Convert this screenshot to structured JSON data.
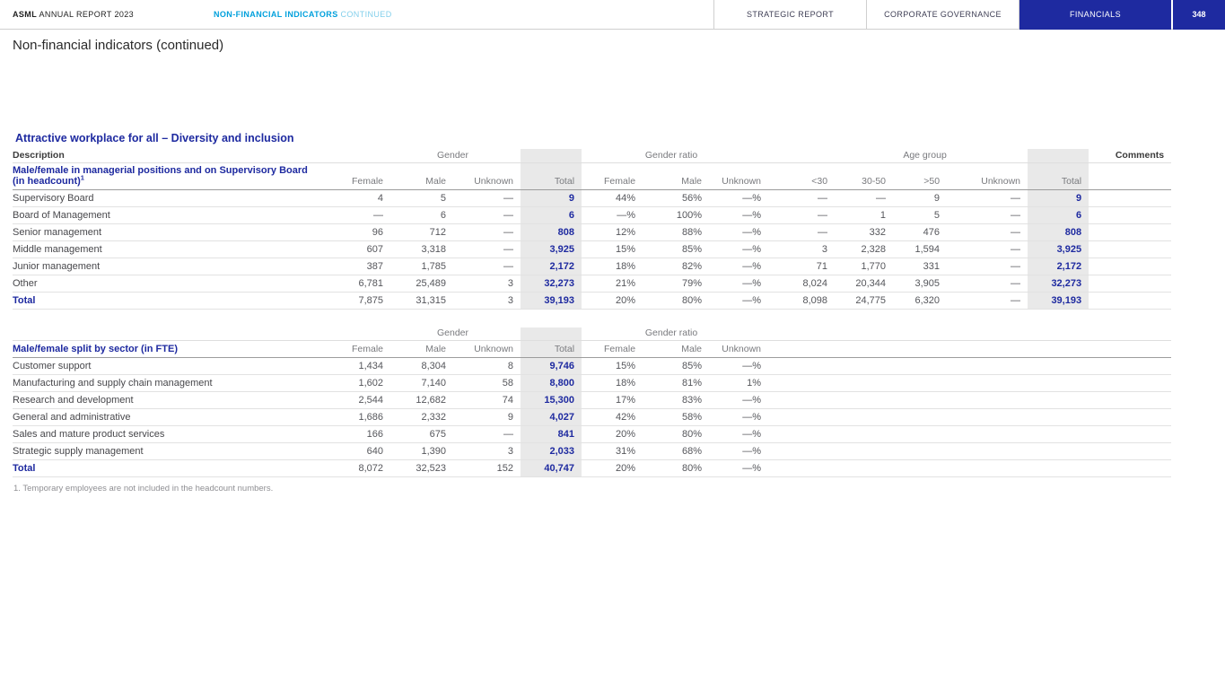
{
  "colors": {
    "navy": "#1e2aa0",
    "cyan": "#00a0dc",
    "cyan_light": "#82cfeb",
    "gray_band": "#e9e9e9"
  },
  "header": {
    "brand_bold": "ASML",
    "brand_rest": " ANNUAL REPORT 2023",
    "section_bold": "NON-FINANCIAL INDICATORS",
    "section_rest": " CONTINUED",
    "tabs": [
      {
        "label": "STRATEGIC REPORT"
      },
      {
        "label": "CORPORATE GOVERNANCE"
      },
      {
        "label": "FINANCIALS"
      }
    ],
    "page_number": "348"
  },
  "page": {
    "title": "Non-financial indicators (continued)",
    "section_heading": "Attractive workplace for all – Diversity and inclusion",
    "footnote": "1. Temporary employees are not included in the headcount numbers."
  },
  "table1": {
    "group_headers": {
      "description": "Description",
      "gender": "Gender",
      "gender_ratio": "Gender ratio",
      "age_group": "Age group",
      "comments": "Comments"
    },
    "subtitle": "Male/female in managerial positions and on Supervisory Board (in headcount)",
    "subtitle_footnote_ref": "1",
    "columns": [
      "Female",
      "Male",
      "Unknown",
      "Total",
      "Female",
      "Male",
      "Unknown",
      "<30",
      "30-50",
      ">50",
      "Unknown",
      "Total"
    ],
    "rows": [
      {
        "label": "Supervisory Board",
        "values": [
          "4",
          "5",
          "—",
          "9",
          "44%",
          "56%",
          "—%",
          "—",
          "—",
          "9",
          "—",
          "9"
        ],
        "total": false
      },
      {
        "label": "Board of Management",
        "values": [
          "—",
          "6",
          "—",
          "6",
          "—%",
          "100%",
          "—%",
          "—",
          "1",
          "5",
          "—",
          "6"
        ],
        "total": false
      },
      {
        "label": "Senior management",
        "values": [
          "96",
          "712",
          "—",
          "808",
          "12%",
          "88%",
          "—%",
          "—",
          "332",
          "476",
          "—",
          "808"
        ],
        "total": false
      },
      {
        "label": "Middle management",
        "values": [
          "607",
          "3,318",
          "—",
          "3,925",
          "15%",
          "85%",
          "—%",
          "3",
          "2,328",
          "1,594",
          "—",
          "3,925"
        ],
        "total": false
      },
      {
        "label": "Junior management",
        "values": [
          "387",
          "1,785",
          "—",
          "2,172",
          "18%",
          "82%",
          "—%",
          "71",
          "1,770",
          "331",
          "—",
          "2,172"
        ],
        "total": false
      },
      {
        "label": "Other",
        "values": [
          "6,781",
          "25,489",
          "3",
          "32,273",
          "21%",
          "79%",
          "—%",
          "8,024",
          "20,344",
          "3,905",
          "—",
          "32,273"
        ],
        "total": false
      },
      {
        "label": "Total",
        "values": [
          "7,875",
          "31,315",
          "3",
          "39,193",
          "20%",
          "80%",
          "—%",
          "8,098",
          "24,775",
          "6,320",
          "—",
          "39,193"
        ],
        "total": true
      }
    ]
  },
  "table2": {
    "group_headers": {
      "gender": "Gender",
      "gender_ratio": "Gender ratio"
    },
    "subtitle": "Male/female split by sector (in FTE)",
    "columns": [
      "Female",
      "Male",
      "Unknown",
      "Total",
      "Female",
      "Male",
      "Unknown"
    ],
    "rows": [
      {
        "label": "Customer support",
        "values": [
          "1,434",
          "8,304",
          "8",
          "9,746",
          "15%",
          "85%",
          "—%"
        ],
        "total": false
      },
      {
        "label": "Manufacturing and supply chain management",
        "values": [
          "1,602",
          "7,140",
          "58",
          "8,800",
          "18%",
          "81%",
          "1%"
        ],
        "total": false
      },
      {
        "label": "Research and development",
        "values": [
          "2,544",
          "12,682",
          "74",
          "15,300",
          "17%",
          "83%",
          "—%"
        ],
        "total": false
      },
      {
        "label": "General and administrative",
        "values": [
          "1,686",
          "2,332",
          "9",
          "4,027",
          "42%",
          "58%",
          "—%"
        ],
        "total": false
      },
      {
        "label": "Sales and mature product services",
        "values": [
          "166",
          "675",
          "—",
          "841",
          "20%",
          "80%",
          "—%"
        ],
        "total": false
      },
      {
        "label": "Strategic supply management",
        "values": [
          "640",
          "1,390",
          "3",
          "2,033",
          "31%",
          "68%",
          "—%"
        ],
        "total": false
      },
      {
        "label": "Total",
        "values": [
          "8,072",
          "32,523",
          "152",
          "40,747",
          "20%",
          "80%",
          "—%"
        ],
        "total": true
      }
    ]
  }
}
